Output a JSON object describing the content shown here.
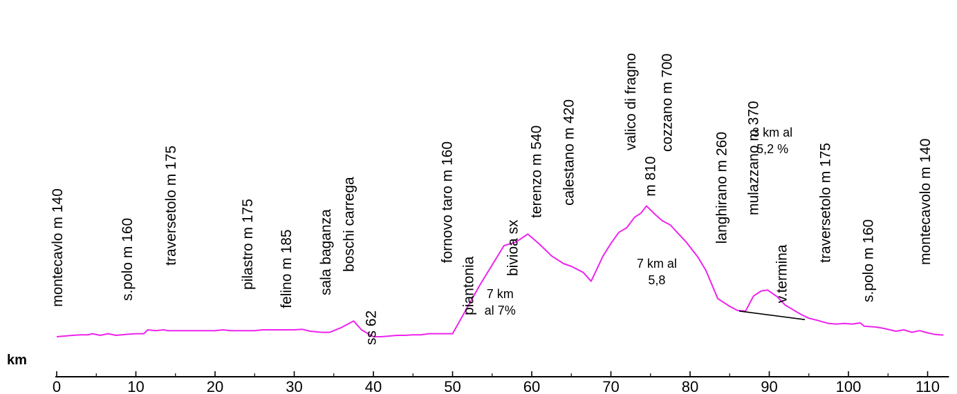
{
  "chart_data": {
    "type": "line",
    "xlabel": "km",
    "xlim": [
      0,
      112
    ],
    "x_ticks": [
      "0",
      "10",
      "20",
      "30",
      "40",
      "50",
      "60",
      "70",
      "80",
      "90",
      "100",
      "110"
    ],
    "line_color": "#ee22ee",
    "grid": false,
    "legend": "none",
    "profile": [
      [
        0,
        140
      ],
      [
        2,
        145
      ],
      [
        3,
        147
      ],
      [
        4,
        147
      ],
      [
        4.5,
        151
      ],
      [
        5.5,
        145
      ],
      [
        6.5,
        151
      ],
      [
        7.5,
        145
      ],
      [
        9,
        149
      ],
      [
        10,
        151
      ],
      [
        11,
        151
      ],
      [
        11.5,
        165
      ],
      [
        12.5,
        162
      ],
      [
        13.5,
        165
      ],
      [
        14,
        162
      ],
      [
        20,
        162
      ],
      [
        21,
        165
      ],
      [
        22,
        162
      ],
      [
        25,
        162
      ],
      [
        26,
        165
      ],
      [
        30,
        165
      ],
      [
        31,
        167
      ],
      [
        32,
        160
      ],
      [
        33.5,
        156
      ],
      [
        34.5,
        156
      ],
      [
        36,
        174
      ],
      [
        37.5,
        197
      ],
      [
        38.5,
        165
      ],
      [
        40,
        140
      ],
      [
        41,
        140
      ],
      [
        43,
        145
      ],
      [
        44,
        145
      ],
      [
        45,
        147
      ],
      [
        46,
        147
      ],
      [
        47,
        151
      ],
      [
        50,
        151
      ],
      [
        53.5,
        330
      ],
      [
        56.5,
        470
      ],
      [
        58,
        483
      ],
      [
        59.5,
        512
      ],
      [
        61,
        475
      ],
      [
        62.5,
        433
      ],
      [
        64,
        405
      ],
      [
        65,
        395
      ],
      [
        66.5,
        373
      ],
      [
        67.5,
        341
      ],
      [
        69,
        432
      ],
      [
        70,
        478
      ],
      [
        71,
        518
      ],
      [
        72,
        535
      ],
      [
        73,
        573
      ],
      [
        73.8,
        588
      ],
      [
        74.5,
        614
      ],
      [
        75.5,
        585
      ],
      [
        76.5,
        560
      ],
      [
        77.5,
        545
      ],
      [
        78.5,
        514
      ],
      [
        79.5,
        483
      ],
      [
        81,
        428
      ],
      [
        82,
        380
      ],
      [
        83.5,
        278
      ],
      [
        85,
        250
      ],
      [
        86,
        235
      ],
      [
        87,
        233
      ],
      [
        88,
        287
      ],
      [
        89,
        306
      ],
      [
        89.8,
        309
      ],
      [
        91,
        285
      ],
      [
        92,
        255
      ],
      [
        94,
        221
      ],
      [
        95,
        207
      ],
      [
        96,
        200
      ],
      [
        97.5,
        188
      ],
      [
        98.5,
        186
      ],
      [
        99.5,
        188
      ],
      [
        100.5,
        186
      ],
      [
        101.5,
        190
      ],
      [
        102,
        178
      ],
      [
        103.5,
        175
      ],
      [
        104.5,
        170
      ],
      [
        106,
        160
      ],
      [
        107,
        165
      ],
      [
        108,
        156
      ],
      [
        109,
        162
      ],
      [
        110,
        154
      ],
      [
        111,
        148
      ],
      [
        112,
        146
      ]
    ],
    "connector": [
      [
        86.2,
        233
      ],
      [
        94.5,
        202
      ]
    ],
    "waypoints": [
      {
        "label": "montecavlo m 140",
        "x": 0.7,
        "y": 248
      },
      {
        "label": "s.polo m 160",
        "x": 9.5,
        "y": 270
      },
      {
        "label": "traversetolo m 175",
        "x": 15,
        "y": 398
      },
      {
        "label": "pilastro m 175",
        "x": 24.7,
        "y": 310
      },
      {
        "label": "felino m 185",
        "x": 29.6,
        "y": 243
      },
      {
        "label": "sala baganza",
        "x": 34.6,
        "y": 290
      },
      {
        "label": "boschi carrega",
        "x": 37.5,
        "y": 375
      },
      {
        "label": "ss 62",
        "x": 40.3,
        "y": 110
      },
      {
        "label": "fornovo taro m 160",
        "x": 49.9,
        "y": 407
      },
      {
        "label": "piantonia",
        "x": 52.6,
        "y": 218
      },
      {
        "label": "bivioa sx",
        "x": 58.2,
        "y": 360
      },
      {
        "label": "terenzo m 540",
        "x": 61.2,
        "y": 570
      },
      {
        "label": "calestano m 420",
        "x": 65.3,
        "y": 615
      },
      {
        "label": "valico di fragno",
        "x": 73.1,
        "y": 815
      },
      {
        "label": "m 810",
        "x": 75.6,
        "y": 648
      },
      {
        "label": "cozzano m 700",
        "x": 77.7,
        "y": 810
      },
      {
        "label": "langhirano m 260",
        "x": 84.6,
        "y": 477
      },
      {
        "label": "mulazzano m 370",
        "x": 88.6,
        "y": 580
      },
      {
        "label": "v.termina",
        "x": 92.2,
        "y": 262
      },
      {
        "label": "traversetolo m 175",
        "x": 97.7,
        "y": 408
      },
      {
        "label": "s.polo m 160",
        "x": 103.1,
        "y": 265
      },
      {
        "label": "montecavolo m 140",
        "x": 110.3,
        "y": 400
      }
    ],
    "annotations": [
      {
        "lines": [
          "7 km",
          "al 7%"
        ],
        "x": 56,
        "y": 280
      },
      {
        "lines": [
          "7 km al",
          "5,8"
        ],
        "x": 75.8,
        "y": 390
      },
      {
        "lines": [
          "3  km al",
          "5,2 %"
        ],
        "x": 90.4,
        "y": 865
      }
    ]
  }
}
